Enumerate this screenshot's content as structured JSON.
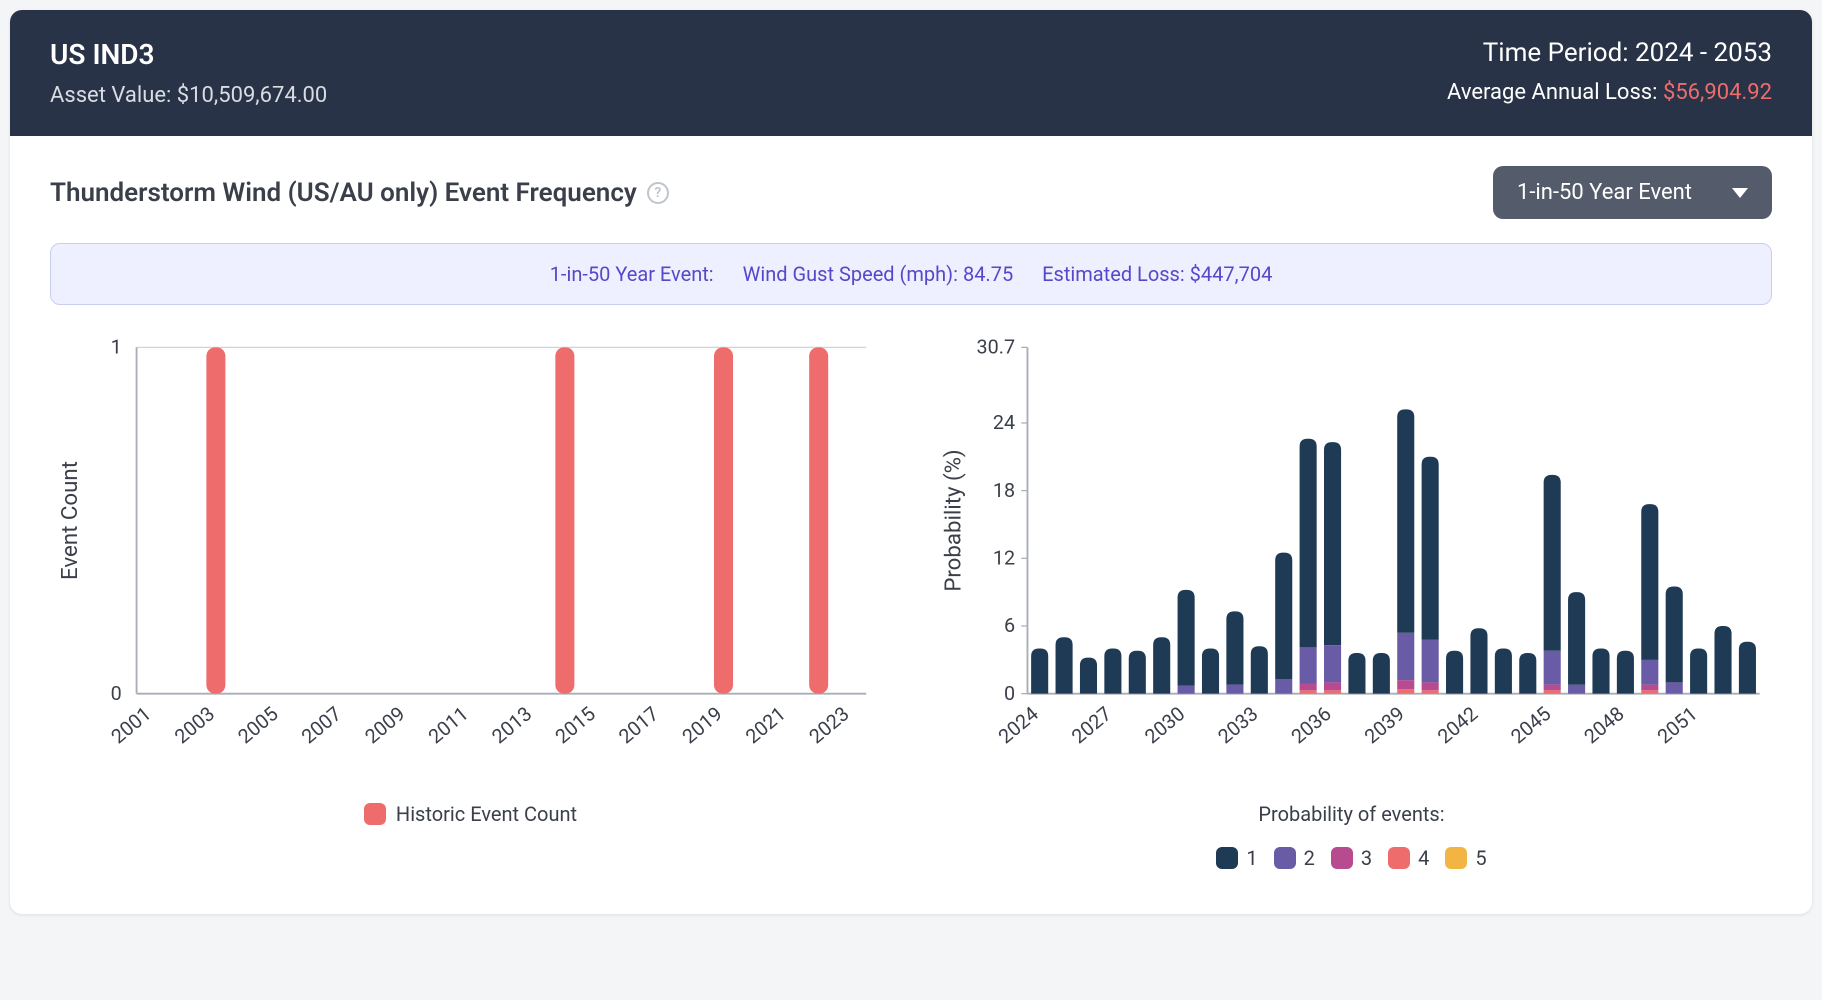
{
  "header": {
    "asset_id": "US IND3",
    "asset_value_label": "Asset Value: $10,509,674.00",
    "time_period_label": "Time Period: 2024 - 2053",
    "aal_label": "Average Annual Loss: ",
    "aal_value": "$56,904.92"
  },
  "title": "Thunderstorm Wind (US/AU only) Event Frequency",
  "dropdown_selected": "1-in-50 Year Event",
  "info_banner": {
    "event_label": "1-in-50 Year Event:",
    "wind_label": "Wind Gust Speed (mph): 84.75",
    "loss_label": "Estimated Loss: $447,704"
  },
  "historic_chart": {
    "type": "bar",
    "ylabel": "Event Count",
    "ylim": [
      0,
      1
    ],
    "yticks": [
      0,
      1
    ],
    "x_start": 2001,
    "x_end": 2023,
    "x_tick_labels": [
      2001,
      2003,
      2005,
      2007,
      2009,
      2011,
      2013,
      2015,
      2017,
      2019,
      2021,
      2023
    ],
    "data": [
      {
        "year": 2003,
        "value": 1
      },
      {
        "year": 2014,
        "value": 1
      },
      {
        "year": 2019,
        "value": 1
      },
      {
        "year": 2022,
        "value": 1
      }
    ],
    "bar_color": "#ee6c6c",
    "bar_width": 0.6,
    "gridline_color": "#d0d3d9",
    "axis_color": "#a8adb7",
    "legend_label": "Historic Event Count",
    "label_fontsize": 18,
    "tick_fontsize": 16
  },
  "prob_chart": {
    "type": "stacked-bar",
    "ylabel": "Probability (%)",
    "ylim": [
      0,
      30.7
    ],
    "yticks": [
      0,
      6,
      12,
      18,
      24,
      30.7
    ],
    "x_start": 2024,
    "x_end": 2053,
    "x_tick_labels": [
      2024,
      2027,
      2030,
      2033,
      2036,
      2039,
      2042,
      2045,
      2048,
      2051
    ],
    "series_colors": {
      "1": "#1e3a54",
      "2": "#6a5ba6",
      "3": "#b84b8f",
      "4": "#ee6c6c",
      "5": "#f2b544"
    },
    "legend_title": "Probability of events:",
    "legend_items": [
      "1",
      "2",
      "3",
      "4",
      "5"
    ],
    "bar_width": 0.7,
    "gridline_color": "#d0d3d9",
    "axis_color": "#a8adb7",
    "label_fontsize": 18,
    "tick_fontsize": 16,
    "data": [
      {
        "year": 2024,
        "stacks": {
          "1": 4.0
        }
      },
      {
        "year": 2025,
        "stacks": {
          "1": 5.0
        }
      },
      {
        "year": 2026,
        "stacks": {
          "1": 3.2
        }
      },
      {
        "year": 2027,
        "stacks": {
          "1": 4.0
        }
      },
      {
        "year": 2028,
        "stacks": {
          "1": 3.8
        }
      },
      {
        "year": 2029,
        "stacks": {
          "1": 5.0
        }
      },
      {
        "year": 2030,
        "stacks": {
          "1": 8.5,
          "2": 0.7
        }
      },
      {
        "year": 2031,
        "stacks": {
          "1": 4.0
        }
      },
      {
        "year": 2032,
        "stacks": {
          "1": 6.5,
          "2": 0.8
        }
      },
      {
        "year": 2033,
        "stacks": {
          "1": 4.2
        }
      },
      {
        "year": 2034,
        "stacks": {
          "1": 11.2,
          "2": 1.3
        }
      },
      {
        "year": 2035,
        "stacks": {
          "1": 18.5,
          "2": 3.2,
          "3": 0.6,
          "4": 0.3
        }
      },
      {
        "year": 2036,
        "stacks": {
          "1": 18.0,
          "2": 3.3,
          "3": 0.7,
          "4": 0.3
        }
      },
      {
        "year": 2037,
        "stacks": {
          "1": 3.6
        }
      },
      {
        "year": 2038,
        "stacks": {
          "1": 3.6
        }
      },
      {
        "year": 2039,
        "stacks": {
          "1": 19.8,
          "2": 4.2,
          "3": 0.8,
          "4": 0.4
        }
      },
      {
        "year": 2040,
        "stacks": {
          "1": 16.2,
          "2": 3.8,
          "3": 0.7,
          "4": 0.3
        }
      },
      {
        "year": 2041,
        "stacks": {
          "1": 3.8
        }
      },
      {
        "year": 2042,
        "stacks": {
          "1": 5.8
        }
      },
      {
        "year": 2043,
        "stacks": {
          "1": 4.0
        }
      },
      {
        "year": 2044,
        "stacks": {
          "1": 3.6
        }
      },
      {
        "year": 2045,
        "stacks": {
          "1": 15.6,
          "2": 3.0,
          "3": 0.5,
          "4": 0.3
        }
      },
      {
        "year": 2046,
        "stacks": {
          "1": 8.2,
          "2": 0.8
        }
      },
      {
        "year": 2047,
        "stacks": {
          "1": 4.0
        }
      },
      {
        "year": 2048,
        "stacks": {
          "1": 3.8
        }
      },
      {
        "year": 2049,
        "stacks": {
          "1": 13.8,
          "2": 2.2,
          "3": 0.5,
          "4": 0.3
        }
      },
      {
        "year": 2050,
        "stacks": {
          "1": 8.5,
          "2": 1.0
        }
      },
      {
        "year": 2051,
        "stacks": {
          "1": 4.0
        }
      },
      {
        "year": 2052,
        "stacks": {
          "1": 6.0
        }
      },
      {
        "year": 2053,
        "stacks": {
          "1": 4.6
        }
      }
    ]
  }
}
